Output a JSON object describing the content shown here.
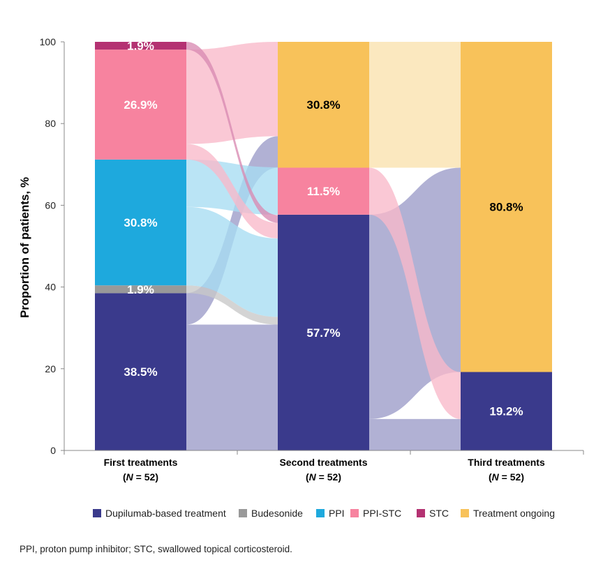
{
  "chart_data": {
    "type": "bar",
    "subtype": "stacked-bar-alluvial",
    "ylabel": "Proportion of patients, %",
    "ylim": [
      0,
      100
    ],
    "yticks": [
      0,
      20,
      40,
      60,
      80,
      100
    ],
    "categories": [
      {
        "name": "First treatments",
        "n_prefix": "(",
        "n_var": "N",
        "n_value": " = 52)"
      },
      {
        "name": "Second treatments",
        "n_prefix": "(",
        "n_var": "N",
        "n_value": " = 52)"
      },
      {
        "name": "Third treatments",
        "n_prefix": "(",
        "n_var": "N",
        "n_value": " = 52)"
      }
    ],
    "series": [
      {
        "name": "Dupilumab-based treatment",
        "color": "#3a3a8c",
        "band_color": "#9b9bc8",
        "label_color": "#ffffff",
        "values": [
          38.5,
          57.7,
          19.2
        ]
      },
      {
        "name": "Budesonide",
        "color": "#999999",
        "band_color": "#c8c8c8",
        "label_color": "#ffffff",
        "values": [
          1.9,
          0,
          0
        ]
      },
      {
        "name": "PPI",
        "color": "#1ea9dd",
        "band_color": "#a6dcf2",
        "label_color": "#ffffff",
        "values": [
          30.8,
          0,
          0
        ]
      },
      {
        "name": "PPI-STC",
        "color": "#f7839f",
        "band_color": "#f9b9c9",
        "label_color": "#ffffff",
        "values": [
          26.9,
          11.5,
          0
        ]
      },
      {
        "name": "STC",
        "color": "#b43272",
        "band_color": "#d98bb2",
        "label_color": "#ffffff",
        "values": [
          1.9,
          0,
          0
        ]
      },
      {
        "name": "Treatment ongoing",
        "color": "#f8c25a",
        "band_color": "#fae2ad",
        "label_color": "#000000",
        "values": [
          0,
          30.8,
          80.8
        ]
      }
    ],
    "data_labels": [
      [
        "38.5%",
        "1.9%",
        "30.8%",
        "26.9%",
        "1.9%",
        ""
      ],
      [
        "57.7%",
        "",
        "",
        "11.5%",
        "",
        "30.8%"
      ],
      [
        "19.2%",
        "",
        "",
        "",
        "",
        "80.8%"
      ]
    ],
    "flows": [
      {
        "from_stage": 1,
        "from_series": "Dupilumab-based treatment",
        "to_series": "Dupilumab-based treatment",
        "value": 30.8
      },
      {
        "from_stage": 1,
        "from_series": "Dupilumab-based treatment",
        "to_series": "Treatment ongoing",
        "value": 7.7
      },
      {
        "from_stage": 1,
        "from_series": "Budesonide",
        "to_series": "Dupilumab-based treatment",
        "value": 1.9
      },
      {
        "from_stage": 1,
        "from_series": "PPI",
        "to_series": "Dupilumab-based treatment",
        "value": 19.2
      },
      {
        "from_stage": 1,
        "from_series": "PPI",
        "to_series": "PPI-STC",
        "value": 11.6
      },
      {
        "from_stage": 1,
        "from_series": "PPI-STC",
        "to_series": "Dupilumab-based treatment",
        "value": 3.8
      },
      {
        "from_stage": 1,
        "from_series": "PPI-STC",
        "to_series": "Treatment ongoing",
        "value": 23.1
      },
      {
        "from_stage": 1,
        "from_series": "STC",
        "to_series": "Dupilumab-based treatment",
        "value": 1.9
      },
      {
        "from_stage": 2,
        "from_series": "Dupilumab-based treatment",
        "to_series": "Dupilumab-based treatment",
        "value": 7.7
      },
      {
        "from_stage": 2,
        "from_series": "Dupilumab-based treatment",
        "to_series": "Treatment ongoing",
        "value": 50.0
      },
      {
        "from_stage": 2,
        "from_series": "PPI-STC",
        "to_series": "Dupilumab-based treatment",
        "value": 11.5
      },
      {
        "from_stage": 2,
        "from_series": "Treatment ongoing",
        "to_series": "Treatment ongoing",
        "value": 30.8
      }
    ],
    "legend_position": "bottom",
    "grid": false
  },
  "footnote": "PPI, proton pump inhibitor; STC, swallowed topical corticosteroid."
}
